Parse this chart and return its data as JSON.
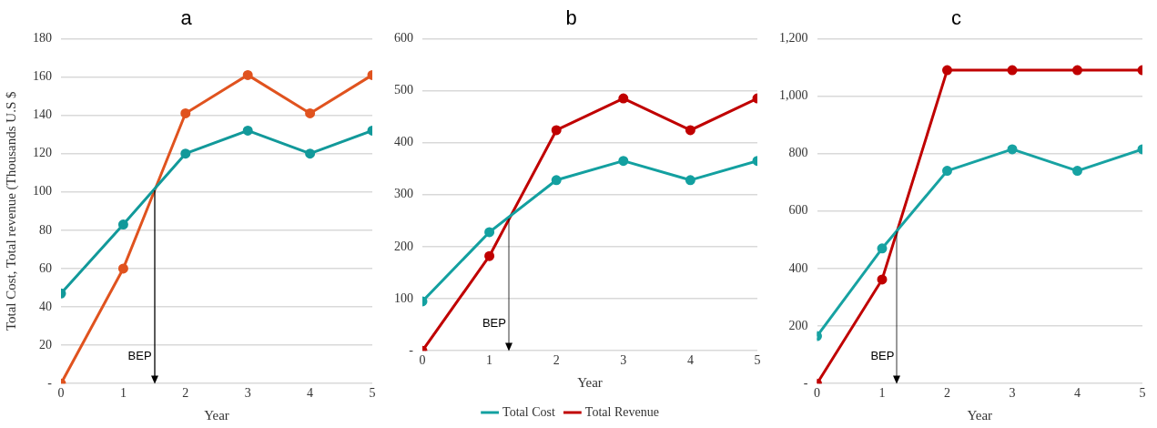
{
  "chart_data": [
    {
      "type": "line",
      "title": "a",
      "xlabel": "Year",
      "ylabel": "Total Cost, Total revenue (Thousands U.S $",
      "x": [
        0,
        1,
        2,
        3,
        4,
        5
      ],
      "xlim": [
        0,
        5
      ],
      "xticks": [
        0,
        1,
        2,
        3,
        4,
        5
      ],
      "ylim": [
        0,
        180
      ],
      "yticks": [
        {
          "value": 0,
          "label": "-"
        },
        20,
        40,
        60,
        80,
        100,
        120,
        140,
        160,
        180
      ],
      "grid": "y",
      "marker": "circle",
      "legend": false,
      "series": [
        {
          "color": "#12999a",
          "values": [
            47,
            83,
            120,
            132,
            120,
            132
          ]
        },
        {
          "color": "#e0531f",
          "values": [
            0,
            60,
            141,
            161,
            141,
            161
          ]
        }
      ],
      "ref_lines": [
        {
          "axis": "x",
          "value": 1.5,
          "label": "BEP"
        }
      ]
    },
    {
      "type": "line",
      "title": "b",
      "xlabel": "Year",
      "x": [
        0,
        1,
        2,
        3,
        4,
        5
      ],
      "xlim": [
        0,
        5
      ],
      "xticks": [
        0,
        1,
        2,
        3,
        4,
        5
      ],
      "ylim": [
        0,
        600
      ],
      "yticks": [
        {
          "value": 0,
          "label": "-"
        },
        100,
        200,
        300,
        400,
        500,
        600
      ],
      "grid": "y",
      "marker": "circle",
      "legend": "bottom",
      "series": [
        {
          "name": "Total Cost",
          "color": "#13a0a0",
          "values": [
            95,
            228,
            328,
            365,
            328,
            365
          ]
        },
        {
          "name": "Total Revenue",
          "color": "#c00000",
          "values": [
            0,
            182,
            424,
            485,
            424,
            485
          ]
        }
      ],
      "ref_lines": [
        {
          "axis": "x",
          "value": 1.29,
          "label": "BEP"
        }
      ]
    },
    {
      "type": "line",
      "title": "c",
      "xlabel": "Year",
      "x": [
        0,
        1,
        2,
        3,
        4,
        5
      ],
      "xlim": [
        0,
        5
      ],
      "xticks": [
        0,
        1,
        2,
        3,
        4,
        5
      ],
      "ylim": [
        0,
        1200
      ],
      "yticks": [
        {
          "value": 0,
          "label": "-"
        },
        200,
        400,
        600,
        800,
        {
          "value": 1000,
          "label": "1,000"
        },
        {
          "value": 1200,
          "label": "1,200"
        }
      ],
      "grid": "y",
      "marker": "circle",
      "legend": false,
      "series": [
        {
          "color": "#17a2a2",
          "values": [
            165,
            470,
            740,
            815,
            740,
            815
          ]
        },
        {
          "color": "#c00000",
          "values": [
            0,
            362,
            1090,
            1090,
            1090,
            1090
          ]
        }
      ],
      "ref_lines": [
        {
          "axis": "x",
          "value": 1.23,
          "label": "BEP"
        }
      ]
    }
  ]
}
